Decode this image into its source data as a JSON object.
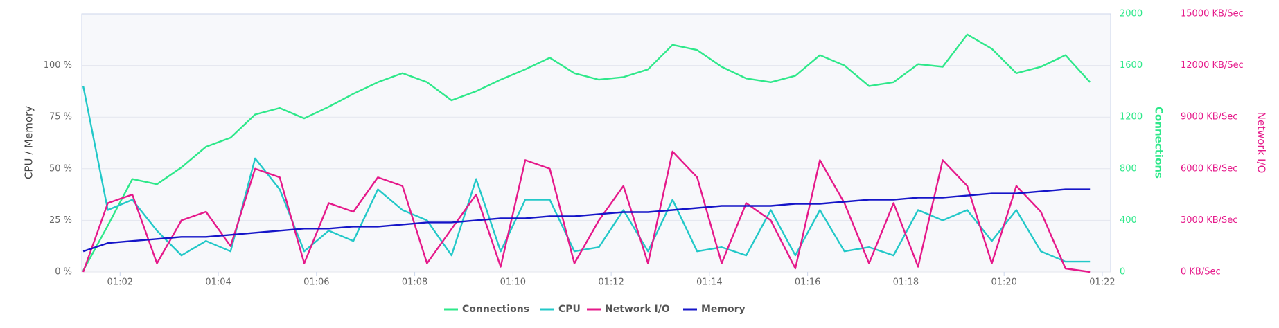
{
  "chart_data": {
    "type": "line",
    "y_label": "CPU / Memory",
    "y2_label": "Connections",
    "y3_label": "Network I/O",
    "x": [
      1.25,
      1.75,
      2.25,
      2.75,
      3.25,
      3.75,
      4.25,
      4.75,
      5.25,
      5.75,
      6.25,
      6.75,
      7.25,
      7.75,
      8.25,
      8.75,
      9.25,
      9.75,
      10.25,
      10.75,
      11.25,
      11.75,
      12.25,
      12.75,
      13.25,
      13.75,
      14.25,
      14.75,
      15.25,
      15.75,
      16.25,
      16.75,
      17.25,
      17.75,
      18.25,
      18.75,
      19.25,
      19.75,
      20.25,
      20.75,
      21.25,
      21.75
    ],
    "xlim": [
      1.22,
      22.17
    ],
    "xticks": [
      {
        "value": 2,
        "label": "01:02"
      },
      {
        "value": 4,
        "label": "01:04"
      },
      {
        "value": 6,
        "label": "01:06"
      },
      {
        "value": 8,
        "label": "01:08"
      },
      {
        "value": 10,
        "label": "01:10"
      },
      {
        "value": 12,
        "label": "01:12"
      },
      {
        "value": 14,
        "label": "01:14"
      },
      {
        "value": 16,
        "label": "01:16"
      },
      {
        "value": 18,
        "label": "01:18"
      },
      {
        "value": 20,
        "label": "01:20"
      },
      {
        "value": 22,
        "label": "01:22"
      }
    ],
    "ylim": [
      0,
      125
    ],
    "yticks": [
      {
        "value": 0,
        "label": "0 %"
      },
      {
        "value": 25,
        "label": "25 %"
      },
      {
        "value": 50,
        "label": "50 %"
      },
      {
        "value": 75,
        "label": "75 %"
      },
      {
        "value": 100,
        "label": "100 %"
      }
    ],
    "y2lim": [
      0,
      2000
    ],
    "y2ticks": [
      0,
      400,
      800,
      1200,
      1600,
      2000
    ],
    "y3lim": [
      0,
      15000
    ],
    "y3ticks": [
      {
        "value": 0,
        "label": "0 KB/Sec"
      },
      {
        "value": 3000,
        "label": "3000 KB/Sec"
      },
      {
        "value": 6000,
        "label": "6000 KB/Sec"
      },
      {
        "value": 9000,
        "label": "9000 KB/Sec"
      },
      {
        "value": 12000,
        "label": "12000 KB/Sec"
      },
      {
        "value": 15000,
        "label": "15000 KB/Sec"
      }
    ],
    "grid": true,
    "series": [
      {
        "name": "Connections",
        "color": "#2ee88a",
        "axis": "y2",
        "values": [
          10,
          360,
          720,
          680,
          810,
          970,
          1040,
          1220,
          1270,
          1190,
          1280,
          1380,
          1470,
          1540,
          1470,
          1330,
          1400,
          1490,
          1570,
          1660,
          1540,
          1490,
          1510,
          1570,
          1760,
          1720,
          1590,
          1500,
          1470,
          1520,
          1680,
          1600,
          1440,
          1470,
          1610,
          1590,
          1840,
          1730,
          1540,
          1590,
          1680,
          1470
        ]
      },
      {
        "name": "CPU",
        "color": "#22c8c8",
        "values": [
          90,
          30,
          35,
          20,
          8,
          15,
          10,
          55,
          40,
          10,
          20,
          15,
          40,
          30,
          25,
          8,
          45,
          10,
          35,
          35,
          10,
          12,
          30,
          10,
          35,
          10,
          12,
          8,
          30,
          8,
          30,
          10,
          12,
          8,
          30,
          25,
          30,
          15,
          30,
          10,
          5,
          5
        ]
      },
      {
        "name": "Network I/O",
        "color": "#e5198a",
        "axis": "y3",
        "values": [
          0,
          4000,
          4500,
          500,
          3000,
          3500,
          1500,
          6000,
          5500,
          500,
          4000,
          3500,
          5500,
          5000,
          500,
          2500,
          4500,
          300,
          6500,
          6000,
          500,
          3000,
          5000,
          500,
          7000,
          5500,
          500,
          4000,
          3000,
          200,
          6500,
          4000,
          500,
          4000,
          300,
          6500,
          5000,
          500,
          5000,
          3500,
          200,
          0
        ]
      },
      {
        "name": "Memory",
        "color": "#1515c8",
        "values": [
          10,
          14,
          15,
          16,
          17,
          17,
          18,
          19,
          20,
          21,
          21,
          22,
          22,
          23,
          24,
          24,
          25,
          26,
          26,
          27,
          27,
          28,
          29,
          29,
          30,
          31,
          32,
          32,
          32,
          33,
          33,
          34,
          35,
          35,
          36,
          36,
          37,
          38,
          38,
          39,
          40,
          40
        ]
      }
    ]
  }
}
